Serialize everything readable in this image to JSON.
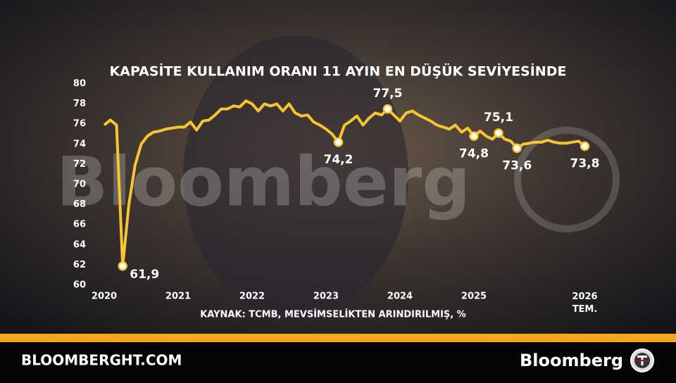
{
  "chart_data": {
    "type": "line",
    "title": "KAPASİTE KULLANIM ORANI 11 AYIN EN DÜŞÜK SEVİYESİNDE",
    "source": "KAYNAK: TCMB, MEVSİMSELİKTEN ARINDIRILMIŞ, %",
    "categories": [
      "2020",
      null,
      null,
      null,
      null,
      null,
      null,
      null,
      null,
      null,
      null,
      null,
      "2021",
      null,
      null,
      null,
      null,
      null,
      null,
      null,
      null,
      null,
      null,
      null,
      "2022",
      null,
      null,
      null,
      null,
      null,
      null,
      null,
      null,
      null,
      null,
      null,
      "2023",
      null,
      null,
      null,
      null,
      null,
      null,
      null,
      null,
      null,
      null,
      null,
      "2024",
      null,
      null,
      null,
      null,
      null,
      null,
      null,
      null,
      null,
      null,
      null,
      "2025",
      null,
      null,
      null,
      null,
      null,
      null,
      null,
      null,
      null,
      null,
      null,
      null,
      null,
      null,
      null,
      null,
      null,
      "2026 TEM."
    ],
    "values": [
      75.9,
      76.4,
      75.9,
      61.9,
      68.0,
      71.9,
      74.0,
      74.8,
      75.2,
      75.3,
      75.5,
      75.6,
      75.7,
      75.7,
      76.2,
      75.4,
      76.3,
      76.4,
      76.9,
      77.5,
      77.5,
      77.8,
      77.7,
      78.3,
      78.0,
      77.3,
      78.0,
      77.8,
      78.0,
      77.3,
      78.0,
      77.1,
      76.8,
      76.9,
      76.2,
      75.9,
      75.5,
      75.0,
      74.2,
      75.9,
      76.3,
      76.8,
      75.9,
      76.6,
      77.1,
      76.9,
      77.5,
      76.9,
      76.3,
      77.1,
      77.3,
      76.9,
      76.6,
      76.3,
      75.9,
      75.7,
      75.5,
      75.9,
      75.2,
      75.6,
      74.8,
      75.3,
      74.8,
      74.5,
      75.1,
      74.5,
      74.3,
      73.6,
      74.0,
      74.1,
      74.2,
      74.2,
      74.4,
      74.2,
      74.1,
      74.1,
      74.2,
      74.3,
      73.8
    ],
    "value_labels": [
      null,
      null,
      null,
      "61,9",
      null,
      null,
      null,
      null,
      null,
      null,
      null,
      null,
      null,
      null,
      null,
      null,
      null,
      null,
      null,
      null,
      null,
      null,
      null,
      null,
      null,
      null,
      null,
      null,
      null,
      null,
      null,
      null,
      null,
      null,
      null,
      null,
      null,
      null,
      "74,2",
      null,
      null,
      null,
      null,
      null,
      null,
      null,
      "77,5",
      null,
      null,
      null,
      null,
      null,
      null,
      null,
      null,
      null,
      null,
      null,
      null,
      null,
      "74,8",
      null,
      null,
      null,
      "75,1",
      null,
      null,
      "73,6",
      null,
      null,
      null,
      null,
      null,
      null,
      null,
      null,
      null,
      null,
      "73,8"
    ],
    "color": "#f7c531",
    "ylim": [
      60,
      80
    ],
    "yticks": [
      60,
      62,
      64,
      66,
      68,
      70,
      72,
      74,
      76,
      78,
      80
    ],
    "watermark": "Bloomberg"
  },
  "footer": {
    "site": "BLOOMBERGHT.COM",
    "brand": "Bloomberg"
  }
}
